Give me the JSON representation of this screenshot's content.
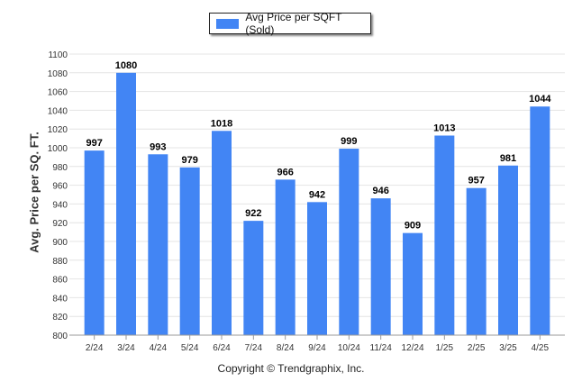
{
  "legend": {
    "label": "Avg Price per SQFT (Sold)",
    "color": "#4285f4"
  },
  "copyright": "Copyright © Trendgraphix, Inc.",
  "chart_data": {
    "type": "bar",
    "categories": [
      "2/24",
      "3/24",
      "4/24",
      "5/24",
      "6/24",
      "7/24",
      "8/24",
      "9/24",
      "10/24",
      "11/24",
      "12/24",
      "1/25",
      "2/25",
      "3/25",
      "4/25"
    ],
    "series": [
      {
        "name": "Avg Price per SQFT (Sold)",
        "values": [
          997,
          1080,
          993,
          979,
          1018,
          922,
          966,
          942,
          999,
          946,
          909,
          1013,
          957,
          981,
          1044
        ]
      }
    ],
    "title": "",
    "xlabel": "",
    "ylabel": "Avg. Price per SQ. FT.",
    "ylim": [
      800,
      1100
    ],
    "yticks": [
      800,
      820,
      840,
      860,
      880,
      900,
      920,
      940,
      960,
      980,
      1000,
      1020,
      1040,
      1060,
      1080,
      1100
    ],
    "grid": true,
    "legend_position": "top-center",
    "bar_color": "#4285f4"
  }
}
